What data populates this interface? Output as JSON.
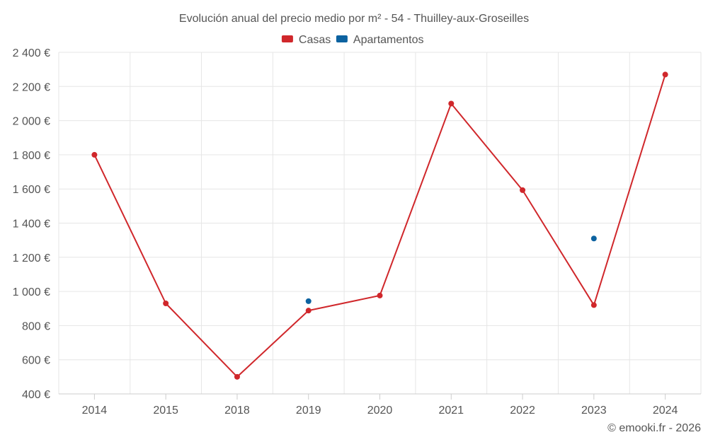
{
  "chart_data": {
    "type": "line",
    "title": "Evolución anual del precio medio por m² - 54 - Thuilley-aux-Groseilles",
    "categories": [
      "2014",
      "2015",
      "2018",
      "2019",
      "2020",
      "2021",
      "2022",
      "2023",
      "2024"
    ],
    "series": [
      {
        "name": "Casas",
        "color": "#d0272b",
        "values": [
          1800,
          930,
          500,
          888,
          976,
          2100,
          1593,
          920,
          2270
        ]
      },
      {
        "name": "Apartamentos",
        "color": "#0c62a0",
        "values": [
          null,
          null,
          null,
          943,
          null,
          null,
          null,
          1310,
          null
        ]
      }
    ],
    "ylim": [
      400,
      2400
    ],
    "yticks": [
      400,
      600,
      800,
      1000,
      1200,
      1400,
      1600,
      1800,
      2000,
      2200,
      2400
    ],
    "ytick_labels": [
      "400 €",
      "600 €",
      "800 €",
      "1 000 €",
      "1 200 €",
      "1 400 €",
      "1 600 €",
      "1 800 €",
      "2 000 €",
      "2 200 €",
      "2 400 €"
    ],
    "xlabel": "",
    "ylabel": "",
    "grid": true,
    "legend_position": "top-center"
  },
  "credit": "© emooki.fr - 2026"
}
